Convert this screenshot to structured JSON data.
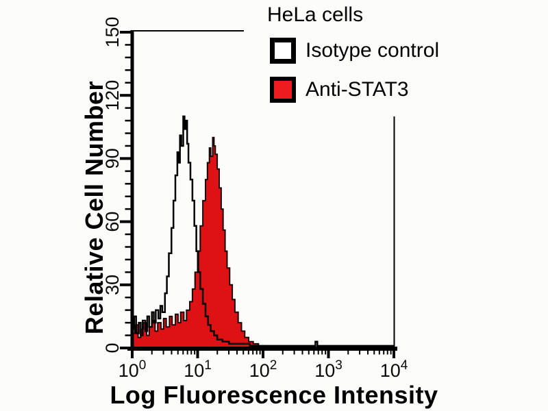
{
  "figure": {
    "background": "#fcfcfa"
  },
  "colors": {
    "axis_line": "#000000",
    "text": "#000000",
    "hist_red_fill": "#de1114",
    "hist_red_stroke": "#1c0404",
    "control_stroke": "#000000",
    "legend_red": "#ec1c1c"
  },
  "legend": {
    "title": "HeLa cells",
    "entries": [
      {
        "label": "Isotype control",
        "swatch": "open-white"
      },
      {
        "label": "Anti-STAT3",
        "swatch": "filled-red"
      }
    ]
  },
  "chart_data": {
    "type": "area",
    "subtype": "flow-cytometry-histogram-overlay",
    "title": "HeLa cells",
    "xlabel": "Log Fluorescence Intensity",
    "ylabel": "Relative Cell Number",
    "x_scale": "log10",
    "xlim": [
      1,
      10000
    ],
    "ylim": [
      0,
      150
    ],
    "y_ticks": [
      0,
      30,
      60,
      90,
      120,
      150
    ],
    "y_minor_step": 6,
    "x_tick_exponents": [
      0,
      1,
      2,
      3,
      4
    ],
    "grid": false,
    "legend_position": "top-right",
    "series": [
      {
        "name": "Isotype control",
        "style": "open",
        "peak": {
          "x_log10": 0.78,
          "height": 110
        },
        "points": [
          [
            0.0,
            9
          ],
          [
            0.03,
            15
          ],
          [
            0.06,
            7
          ],
          [
            0.1,
            12
          ],
          [
            0.13,
            6
          ],
          [
            0.16,
            13
          ],
          [
            0.2,
            8
          ],
          [
            0.23,
            15
          ],
          [
            0.26,
            10
          ],
          [
            0.3,
            17
          ],
          [
            0.33,
            12
          ],
          [
            0.36,
            18
          ],
          [
            0.4,
            14
          ],
          [
            0.43,
            20
          ],
          [
            0.46,
            17
          ],
          [
            0.5,
            26
          ],
          [
            0.53,
            34
          ],
          [
            0.56,
            45
          ],
          [
            0.6,
            57
          ],
          [
            0.63,
            70
          ],
          [
            0.66,
            82
          ],
          [
            0.69,
            93
          ],
          [
            0.71,
            88
          ],
          [
            0.73,
            101
          ],
          [
            0.75,
            96
          ],
          [
            0.78,
            110
          ],
          [
            0.8,
            104
          ],
          [
            0.82,
            108
          ],
          [
            0.84,
            97
          ],
          [
            0.86,
            88
          ],
          [
            0.89,
            80
          ],
          [
            0.92,
            70
          ],
          [
            0.95,
            58
          ],
          [
            0.98,
            46
          ],
          [
            1.01,
            36
          ],
          [
            1.04,
            28
          ],
          [
            1.08,
            21
          ],
          [
            1.12,
            15
          ],
          [
            1.16,
            11
          ],
          [
            1.2,
            8
          ],
          [
            1.25,
            6
          ],
          [
            1.3,
            4
          ],
          [
            1.38,
            3
          ],
          [
            1.48,
            2
          ],
          [
            1.6,
            2
          ],
          [
            1.8,
            1
          ],
          [
            2.05,
            1
          ],
          [
            2.3,
            1
          ],
          [
            2.77,
            1
          ],
          [
            2.8,
            3
          ],
          [
            2.83,
            1
          ],
          [
            3.2,
            1
          ],
          [
            3.6,
            1
          ],
          [
            4.0,
            1
          ]
        ]
      },
      {
        "name": "Anti-STAT3",
        "style": "filled",
        "peak": {
          "x_log10": 1.23,
          "height": 100
        },
        "points": [
          [
            0.0,
            7
          ],
          [
            0.04,
            11
          ],
          [
            0.09,
            5
          ],
          [
            0.13,
            9
          ],
          [
            0.17,
            12
          ],
          [
            0.22,
            6
          ],
          [
            0.26,
            10
          ],
          [
            0.3,
            13
          ],
          [
            0.35,
            8
          ],
          [
            0.39,
            12
          ],
          [
            0.44,
            9
          ],
          [
            0.48,
            14
          ],
          [
            0.52,
            10
          ],
          [
            0.57,
            15
          ],
          [
            0.61,
            11
          ],
          [
            0.66,
            16
          ],
          [
            0.7,
            12
          ],
          [
            0.74,
            17
          ],
          [
            0.79,
            13
          ],
          [
            0.83,
            18
          ],
          [
            0.88,
            22
          ],
          [
            0.92,
            28
          ],
          [
            0.96,
            36
          ],
          [
            1.0,
            46
          ],
          [
            1.04,
            58
          ],
          [
            1.08,
            70
          ],
          [
            1.12,
            80
          ],
          [
            1.15,
            88
          ],
          [
            1.18,
            95
          ],
          [
            1.2,
            91
          ],
          [
            1.23,
            100
          ],
          [
            1.25,
            96
          ],
          [
            1.27,
            92
          ],
          [
            1.3,
            85
          ],
          [
            1.33,
            76
          ],
          [
            1.36,
            66
          ],
          [
            1.39,
            56
          ],
          [
            1.42,
            46
          ],
          [
            1.45,
            38
          ],
          [
            1.49,
            30
          ],
          [
            1.53,
            23
          ],
          [
            1.57,
            17
          ],
          [
            1.62,
            12
          ],
          [
            1.67,
            8
          ],
          [
            1.72,
            5
          ],
          [
            1.78,
            3
          ],
          [
            1.85,
            2
          ],
          [
            1.93,
            1
          ],
          [
            2.05,
            0
          ],
          [
            4.0,
            0
          ]
        ]
      }
    ]
  }
}
